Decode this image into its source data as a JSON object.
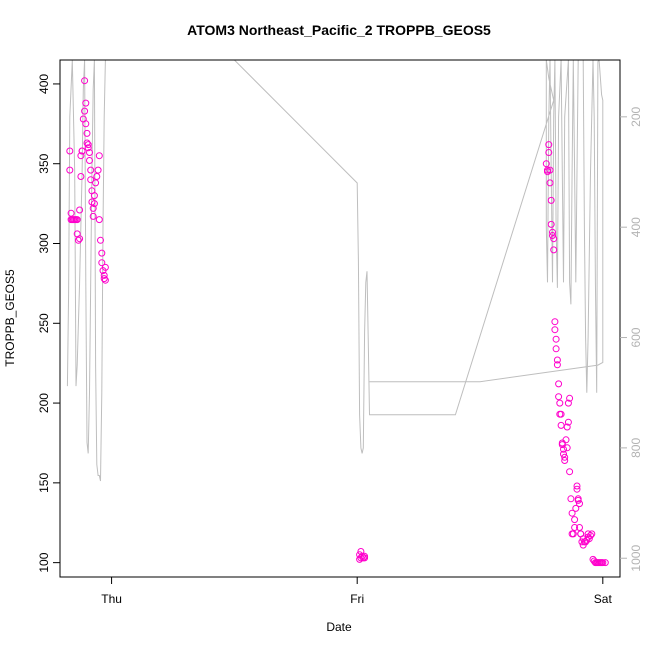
{
  "chart_data": {
    "type": "scatter",
    "title": "ATOM3 Northeast_Pacific_2 TROPPB_GEOS5",
    "xlabel": "Date",
    "ylabel": "TROPPB_GEOS5",
    "x_unit": "days since Thu 00:00",
    "x_ticks": [
      {
        "value": 0,
        "label": "Thu"
      },
      {
        "value": 1,
        "label": "Fri"
      },
      {
        "value": 2,
        "label": "Sat"
      }
    ],
    "xlim": [
      -0.21,
      2.07
    ],
    "ylim": [
      91,
      415
    ],
    "y_ticks": [
      100,
      150,
      200,
      250,
      300,
      350,
      400
    ],
    "y2_ticks": [
      200,
      400,
      600,
      800,
      1000
    ],
    "y2lim": [
      1034,
      97
    ],
    "grid": false,
    "colors": {
      "points": "#ff00cc",
      "altitude_line": "#bebebe",
      "axes": "#000000",
      "right_axis": "#b3b3b3"
    },
    "series": [
      {
        "values": [
          [
            -0.17,
            358
          ],
          [
            -0.17,
            346
          ],
          [
            -0.165,
            319
          ],
          [
            -0.165,
            315
          ],
          [
            -0.16,
            315
          ],
          [
            -0.155,
            315
          ],
          [
            -0.15,
            315
          ],
          [
            -0.145,
            315
          ],
          [
            -0.14,
            315
          ],
          [
            -0.14,
            306
          ],
          [
            -0.135,
            302
          ],
          [
            -0.13,
            303
          ],
          [
            -0.13,
            321
          ],
          [
            -0.125,
            342
          ],
          [
            -0.125,
            355
          ],
          [
            -0.12,
            358
          ],
          [
            -0.12,
            358
          ],
          [
            -0.115,
            378
          ],
          [
            -0.11,
            383
          ],
          [
            -0.11,
            402
          ],
          [
            -0.105,
            388
          ],
          [
            -0.105,
            375
          ],
          [
            -0.1,
            369
          ],
          [
            -0.1,
            363
          ],
          [
            -0.095,
            362
          ],
          [
            -0.095,
            360
          ],
          [
            -0.09,
            357
          ],
          [
            -0.09,
            352
          ],
          [
            -0.085,
            346
          ],
          [
            -0.085,
            340
          ],
          [
            -0.08,
            333
          ],
          [
            -0.08,
            326
          ],
          [
            -0.075,
            317
          ],
          [
            -0.075,
            322
          ],
          [
            -0.07,
            325
          ],
          [
            -0.07,
            330
          ],
          [
            -0.065,
            338
          ],
          [
            -0.06,
            342
          ],
          [
            -0.055,
            346
          ],
          [
            -0.05,
            355
          ],
          [
            -0.05,
            315
          ],
          [
            -0.045,
            302
          ],
          [
            -0.04,
            294
          ],
          [
            -0.04,
            288
          ],
          [
            -0.035,
            283
          ],
          [
            -0.03,
            280
          ],
          [
            -0.03,
            278
          ],
          [
            -0.025,
            277
          ],
          [
            -0.025,
            285
          ],
          [
            1.01,
            102
          ],
          [
            1.01,
            105
          ],
          [
            1.015,
            107
          ],
          [
            1.015,
            103
          ],
          [
            1.02,
            104
          ],
          [
            1.025,
            103
          ],
          [
            1.03,
            104
          ],
          [
            1.03,
            103
          ],
          [
            1.77,
            350
          ],
          [
            1.775,
            346
          ],
          [
            1.775,
            345
          ],
          [
            1.78,
            362
          ],
          [
            1.78,
            357
          ],
          [
            1.785,
            346
          ],
          [
            1.785,
            338
          ],
          [
            1.79,
            327
          ],
          [
            1.79,
            312
          ],
          [
            1.795,
            307
          ],
          [
            1.795,
            305
          ],
          [
            1.8,
            303
          ],
          [
            1.8,
            296
          ],
          [
            1.805,
            251
          ],
          [
            1.805,
            246
          ],
          [
            1.81,
            240
          ],
          [
            1.81,
            234
          ],
          [
            1.815,
            227
          ],
          [
            1.815,
            224
          ],
          [
            1.82,
            212
          ],
          [
            1.82,
            204
          ],
          [
            1.825,
            200
          ],
          [
            1.825,
            193
          ],
          [
            1.83,
            193
          ],
          [
            1.83,
            186
          ],
          [
            1.835,
            175
          ],
          [
            1.835,
            174
          ],
          [
            1.84,
            171
          ],
          [
            1.84,
            168
          ],
          [
            1.845,
            166
          ],
          [
            1.845,
            164
          ],
          [
            1.85,
            177
          ],
          [
            1.855,
            172
          ],
          [
            1.855,
            185
          ],
          [
            1.86,
            188
          ],
          [
            1.86,
            200
          ],
          [
            1.865,
            203
          ],
          [
            1.865,
            157
          ],
          [
            1.87,
            140
          ],
          [
            1.875,
            131
          ],
          [
            1.875,
            118
          ],
          [
            1.88,
            118
          ],
          [
            1.885,
            127
          ],
          [
            1.885,
            122
          ],
          [
            1.89,
            134
          ],
          [
            1.895,
            148
          ],
          [
            1.895,
            146
          ],
          [
            1.9,
            140
          ],
          [
            1.9,
            139
          ],
          [
            1.905,
            137
          ],
          [
            1.905,
            122
          ],
          [
            1.91,
            118
          ],
          [
            1.91,
            118
          ],
          [
            1.915,
            113
          ],
          [
            1.92,
            111
          ],
          [
            1.92,
            115
          ],
          [
            1.925,
            113
          ],
          [
            1.93,
            113
          ],
          [
            1.935,
            114
          ],
          [
            1.94,
            116
          ],
          [
            1.94,
            118
          ],
          [
            1.945,
            115
          ],
          [
            1.95,
            117
          ],
          [
            1.955,
            118
          ],
          [
            1.96,
            102
          ],
          [
            1.965,
            101
          ],
          [
            1.97,
            100
          ],
          [
            1.975,
            100
          ],
          [
            1.98,
            100
          ],
          [
            1.985,
            100
          ],
          [
            1.99,
            100
          ],
          [
            1.995,
            100
          ],
          [
            2.0,
            100
          ],
          [
            2.01,
            100
          ]
        ]
      },
      {
        "axis": "right",
        "values": [
          [
            -0.18,
            688
          ],
          [
            -0.175,
            520
          ],
          [
            -0.17,
            200
          ],
          [
            -0.16,
            97
          ],
          [
            -0.15,
            300
          ],
          [
            -0.145,
            688
          ],
          [
            -0.14,
            650
          ],
          [
            -0.13,
            500
          ],
          [
            -0.12,
            300
          ],
          [
            -0.115,
            150
          ],
          [
            -0.11,
            97
          ],
          [
            -0.105,
            500
          ],
          [
            -0.1,
            790
          ],
          [
            -0.095,
            810
          ],
          [
            -0.09,
            700
          ],
          [
            -0.085,
            500
          ],
          [
            -0.08,
            300
          ],
          [
            -0.075,
            150
          ],
          [
            -0.07,
            97
          ],
          [
            -0.065,
            650
          ],
          [
            -0.06,
            830
          ],
          [
            -0.055,
            850
          ],
          [
            -0.05,
            850
          ],
          [
            -0.045,
            860
          ],
          [
            -0.04,
            700
          ],
          [
            -0.035,
            400
          ],
          [
            -0.03,
            200
          ],
          [
            -0.025,
            97
          ],
          [
            0,
            97
          ],
          [
            0.5,
            97
          ],
          [
            1.0,
            320
          ],
          [
            1.005,
            460
          ],
          [
            1.01,
            740
          ],
          [
            1.015,
            800
          ],
          [
            1.02,
            810
          ],
          [
            1.025,
            800
          ],
          [
            1.03,
            590
          ],
          [
            1.035,
            500
          ],
          [
            1.04,
            480
          ],
          [
            1.045,
            600
          ],
          [
            1.05,
            740
          ],
          [
            1.4,
            740
          ],
          [
            1.8,
            170
          ],
          [
            1.78,
            130
          ],
          [
            1.77,
            97
          ],
          [
            1.77,
            400
          ],
          [
            1.775,
            500
          ],
          [
            1.78,
            200
          ],
          [
            1.785,
            97
          ],
          [
            1.79,
            300
          ],
          [
            1.795,
            500
          ],
          [
            1.8,
            200
          ],
          [
            1.805,
            97
          ],
          [
            1.81,
            400
          ],
          [
            1.815,
            510
          ],
          [
            1.82,
            200
          ],
          [
            1.83,
            97
          ],
          [
            1.835,
            300
          ],
          [
            1.84,
            500
          ],
          [
            1.845,
            200
          ],
          [
            1.86,
            97
          ],
          [
            1.865,
            500
          ],
          [
            1.87,
            540
          ],
          [
            1.875,
            300
          ],
          [
            1.88,
            97
          ],
          [
            1.885,
            300
          ],
          [
            1.89,
            500
          ],
          [
            1.9,
            97
          ],
          [
            1.92,
            97
          ],
          [
            1.925,
            400
          ],
          [
            1.93,
            600
          ],
          [
            1.935,
            700
          ],
          [
            1.94,
            600
          ],
          [
            1.95,
            300
          ],
          [
            1.96,
            97
          ],
          [
            1.965,
            200
          ],
          [
            1.97,
            500
          ],
          [
            1.975,
            700
          ],
          [
            1.98,
            100
          ],
          [
            1.985,
            97
          ],
          [
            1.995,
            160
          ],
          [
            2.0,
            170
          ],
          [
            2.0,
            645
          ],
          [
            1.98,
            650
          ],
          [
            1.5,
            680
          ],
          [
            1.05,
            680
          ]
        ]
      }
    ]
  }
}
